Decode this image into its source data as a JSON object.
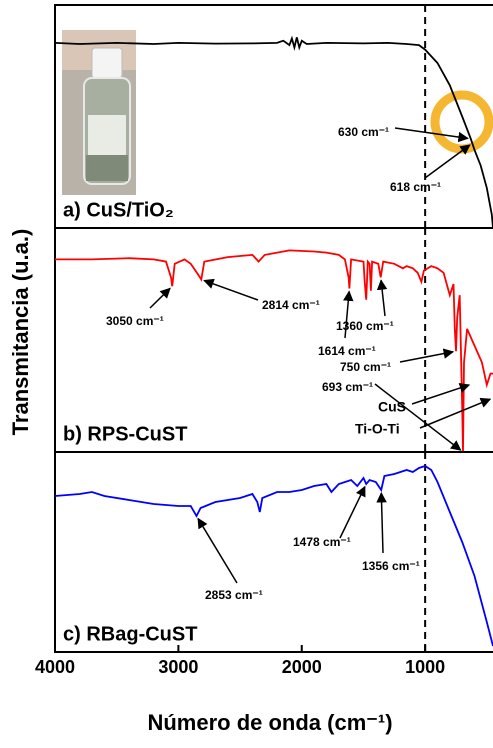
{
  "figure": {
    "ylabel": "Transmitancia (u.a.)",
    "xlabel": "Número de onda (cm⁻¹)"
  },
  "chart_data": [
    {
      "type": "line",
      "label": "a) CuS/TiO₂",
      "color": "#000000",
      "xlim": [
        4000,
        450
      ],
      "ylim": [
        0,
        100
      ],
      "vline": 1000,
      "x": [
        4000,
        3800,
        3500,
        3200,
        3000,
        2700,
        2400,
        2200,
        2150,
        2100,
        2080,
        2060,
        2040,
        2020,
        2000,
        1960,
        1800,
        1500,
        1300,
        1150,
        1050,
        1000,
        900,
        800,
        700,
        630,
        600,
        550,
        500,
        460,
        450
      ],
      "values": [
        83,
        82.5,
        83,
        82.5,
        83,
        82.7,
        82.8,
        83,
        84,
        82,
        85,
        81,
        85.5,
        81,
        84,
        82.5,
        83,
        82.8,
        83,
        82.5,
        82,
        80,
        74,
        64,
        50,
        40,
        35,
        28,
        18,
        6,
        0
      ],
      "annotations": [
        {
          "text": "630 cm⁻¹",
          "x": 630
        },
        {
          "text": "618 cm⁻¹",
          "x": 618
        }
      ]
    },
    {
      "type": "line",
      "label": "b) RPS-CuST",
      "color": "#ff0000",
      "xlim": [
        4000,
        450
      ],
      "ylim": [
        0,
        100
      ],
      "vline": 1000,
      "x": [
        4000,
        3700,
        3400,
        3200,
        3100,
        3060,
        3050,
        3030,
        2950,
        2900,
        2850,
        2814,
        2790,
        2600,
        2400,
        2350,
        2300,
        2100,
        1900,
        1800,
        1700,
        1650,
        1620,
        1614,
        1600,
        1500,
        1490,
        1478,
        1465,
        1450,
        1440,
        1430,
        1380,
        1360,
        1340,
        1250,
        1180,
        1150,
        1100,
        1060,
        1030,
        1010,
        950,
        900,
        850,
        800,
        770,
        760,
        750,
        740,
        720,
        700,
        693,
        685,
        660,
        620,
        580,
        540,
        500,
        470,
        450
      ],
      "values": [
        86,
        86,
        86.5,
        86,
        85,
        78,
        74,
        84,
        86,
        84,
        80,
        77,
        85,
        87,
        88,
        85,
        88,
        90,
        89.5,
        89,
        88,
        86,
        78,
        73,
        86,
        85,
        76,
        68,
        85,
        84,
        72,
        85,
        84,
        78,
        85,
        84,
        82,
        83,
        82,
        80,
        76,
        81,
        83,
        82,
        80,
        70,
        75,
        55,
        45,
        60,
        70,
        20,
        0,
        40,
        55,
        50,
        45,
        40,
        30,
        35,
        35
      ],
      "annotations": [
        {
          "text": "3050 cm⁻¹",
          "x": 3050
        },
        {
          "text": "2814 cm⁻¹",
          "x": 2814
        },
        {
          "text": "1614 cm⁻¹",
          "x": 1614
        },
        {
          "text": "1360 cm⁻¹",
          "x": 1360
        },
        {
          "text": "750 cm⁻¹",
          "x": 750
        },
        {
          "text": "693 cm⁻¹",
          "x": 693
        },
        {
          "text": "CuS"
        },
        {
          "text": "Ti-O-Ti"
        }
      ]
    },
    {
      "type": "line",
      "label": "c) RBag-CuST",
      "color": "#0000ff",
      "xlim": [
        4000,
        450
      ],
      "ylim": [
        0,
        100
      ],
      "vline": 1000,
      "xticks": [
        4000,
        3000,
        2000,
        1000
      ],
      "x": [
        4000,
        3800,
        3700,
        3600,
        3400,
        3200,
        3000,
        2900,
        2853,
        2820,
        2700,
        2500,
        2400,
        2360,
        2340,
        2320,
        2200,
        2100,
        2000,
        1900,
        1800,
        1760,
        1700,
        1600,
        1550,
        1500,
        1478,
        1450,
        1400,
        1356,
        1330,
        1250,
        1150,
        1100,
        1050,
        1000,
        950,
        900,
        800,
        700,
        600,
        500,
        450
      ],
      "values": [
        78,
        79,
        80,
        78,
        76,
        74,
        73,
        73,
        68,
        72,
        75,
        77,
        79,
        75,
        70,
        77,
        80,
        80,
        81,
        83,
        84,
        80,
        84,
        86,
        83,
        87,
        84,
        86,
        85,
        81,
        88,
        89,
        91,
        90,
        92,
        93,
        91,
        85,
        70,
        55,
        38,
        15,
        3
      ],
      "annotations": [
        {
          "text": "2853 cm⁻¹",
          "x": 2853
        },
        {
          "text": "1478 cm⁻¹",
          "x": 1478
        },
        {
          "text": "1356 cm⁻¹",
          "x": 1356
        }
      ]
    }
  ]
}
